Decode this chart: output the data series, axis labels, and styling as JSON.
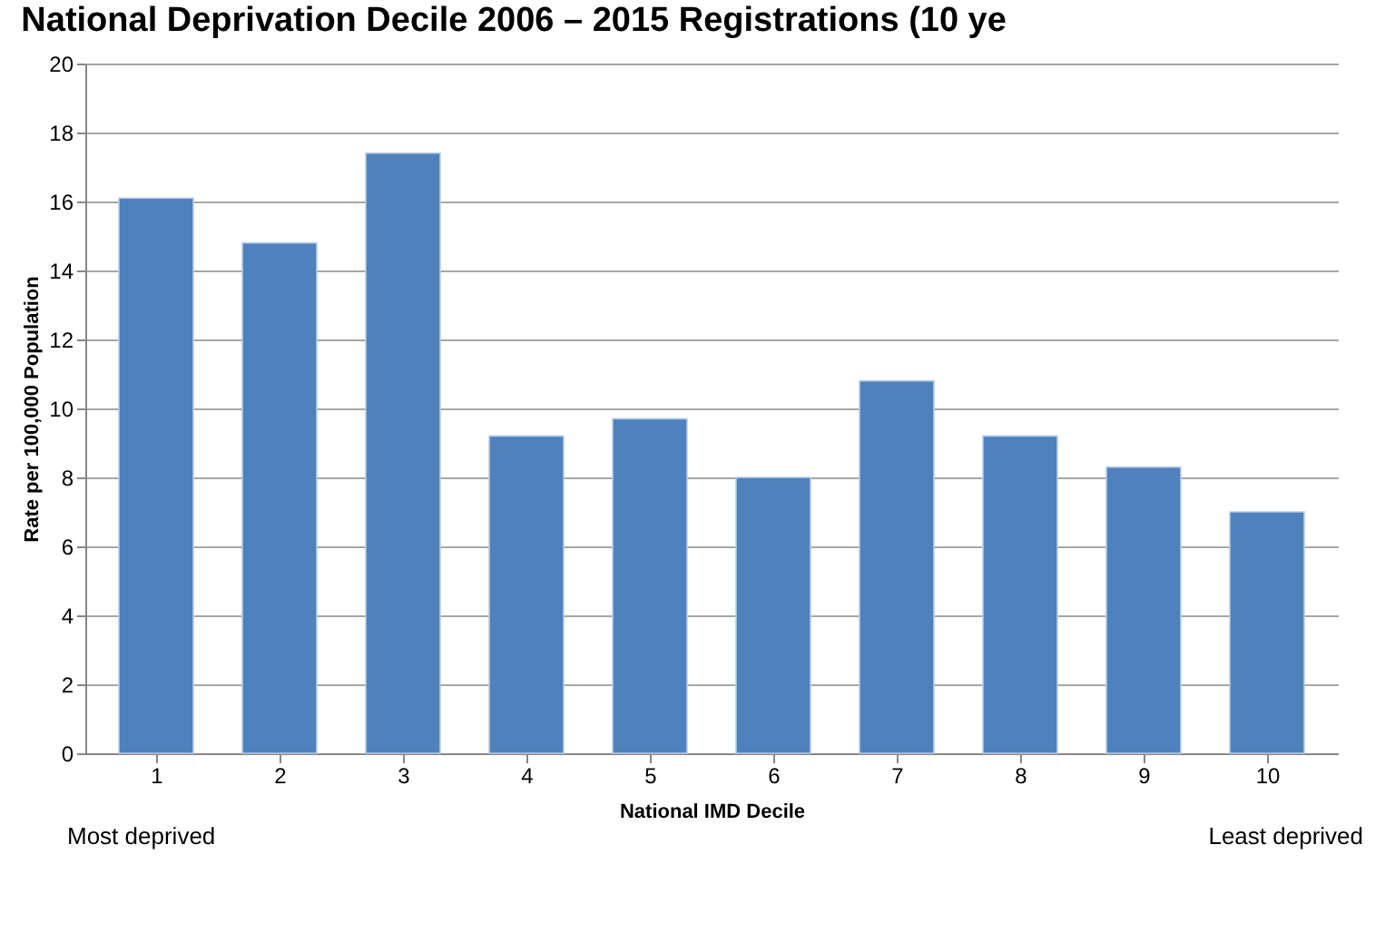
{
  "chart_data": {
    "type": "bar",
    "title": "National Deprivation Decile  2006 – 2015 Registrations (10 ye",
    "categories": [
      "1",
      "2",
      "3",
      "4",
      "5",
      "6",
      "7",
      "8",
      "9",
      "10"
    ],
    "values": [
      16.1,
      14.8,
      17.4,
      9.2,
      9.7,
      8.0,
      10.8,
      9.2,
      8.3,
      7.0
    ],
    "color": "#4f81bd",
    "xlabel": "National IMD Decile",
    "ylabel": "Rate per 100,000 Population",
    "ylim": [
      0,
      20
    ],
    "yticks": [
      0,
      2,
      4,
      6,
      8,
      10,
      12,
      14,
      16,
      18,
      20
    ],
    "grid": "y",
    "annotations": [
      "Most deprived",
      "Least deprived"
    ]
  }
}
